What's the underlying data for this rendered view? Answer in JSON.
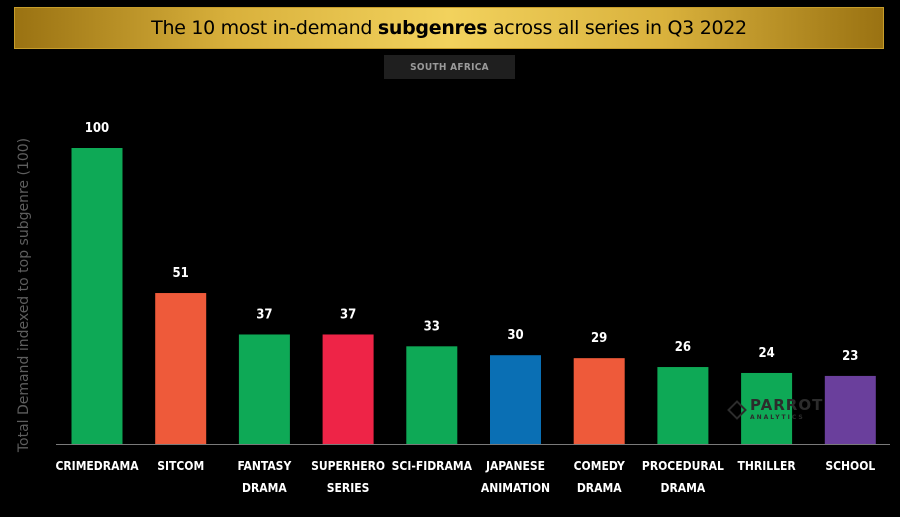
{
  "title": {
    "prefix": "The 10 most in-demand ",
    "bold": "subgenres",
    "suffix": " across all series in Q3 2022"
  },
  "region": "SOUTH AFRICA",
  "watermark": {
    "main": "PARROT",
    "sub": "ANALYTICS"
  },
  "chart_data": {
    "type": "bar",
    "ylabel": "Total Demand indexed to top subgenre (100)",
    "ylim": [
      0,
      100
    ],
    "grid": false,
    "categories": [
      [
        "CRIMEDRAMA"
      ],
      [
        "SITCOM"
      ],
      [
        "FANTASY",
        "DRAMA"
      ],
      [
        "SUPERHERO",
        "SERIES"
      ],
      [
        "SCI-FIDRAMA"
      ],
      [
        "JAPANESE",
        "ANIMATION"
      ],
      [
        "COMEDY",
        "DRAMA"
      ],
      [
        "PROCEDURAL",
        "DRAMA"
      ],
      [
        "THRILLER"
      ],
      [
        "SCHOOL"
      ]
    ],
    "values": [
      100,
      51,
      37,
      37,
      33,
      30,
      29,
      26,
      24,
      23
    ],
    "value_labels": [
      "100",
      "51",
      "37",
      "37",
      "33",
      "30",
      "29",
      "26",
      "24",
      "23"
    ],
    "colors": [
      "#0ea956",
      "#ee5a3a",
      "#0ea956",
      "#ee2447",
      "#0ea956",
      "#0a6fb4",
      "#ee5a3a",
      "#0ea956",
      "#0ea956",
      "#6a3f9c"
    ]
  }
}
